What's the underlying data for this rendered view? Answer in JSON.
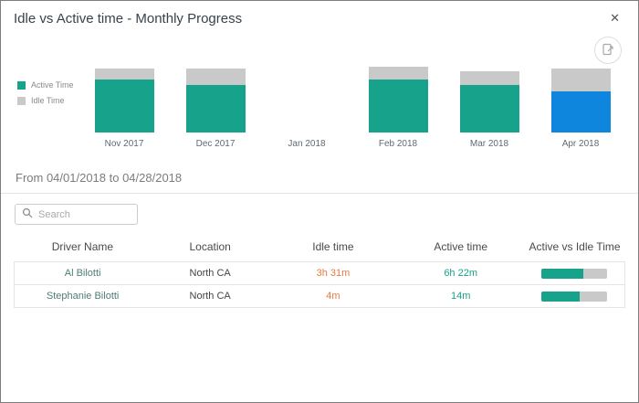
{
  "dialog": {
    "title": "Idle vs Active time - Monthly Progress",
    "close_label": "✕"
  },
  "chart_data": {
    "type": "bar",
    "stacked": true,
    "title": "Idle vs Active time - Monthly Progress",
    "categories": [
      "Nov 2017",
      "Dec 2017",
      "Jan 2018",
      "Feb 2018",
      "Mar 2018",
      "Apr 2018"
    ],
    "series": [
      {
        "name": "Active Time",
        "values": [
          77,
          69,
          0,
          77,
          69,
          60
        ]
      },
      {
        "name": "Idle Time",
        "values": [
          16,
          24,
          0,
          19,
          21,
          33
        ]
      }
    ],
    "selected_category": "Apr 2018",
    "colors": {
      "active": "#17a28b",
      "idle": "#c9c9c9",
      "selected_active": "#0e86dd"
    },
    "legend_position": "left",
    "xlabel": "",
    "ylabel": "",
    "grid": false,
    "ylim": [
      0,
      100
    ]
  },
  "period": {
    "label": "From 04/01/2018 to 04/28/2018"
  },
  "search": {
    "placeholder": "Search"
  },
  "table": {
    "headers": [
      "Driver Name",
      "Location",
      "Idle time",
      "Active time",
      "Active vs Idle Time"
    ],
    "value_colors": {
      "idle_text": "#e8793e",
      "active_text": "#17a28b"
    },
    "rows": [
      {
        "driver": "Al Bilotti",
        "location": "North CA",
        "idle": "3h 31m",
        "active": "6h 22m",
        "active_pct": 64,
        "idle_pct": 36
      },
      {
        "driver": "Stephanie Bilotti",
        "location": "North CA",
        "idle": "4m",
        "active": "14m",
        "active_pct": 58,
        "idle_pct": 42
      }
    ]
  }
}
